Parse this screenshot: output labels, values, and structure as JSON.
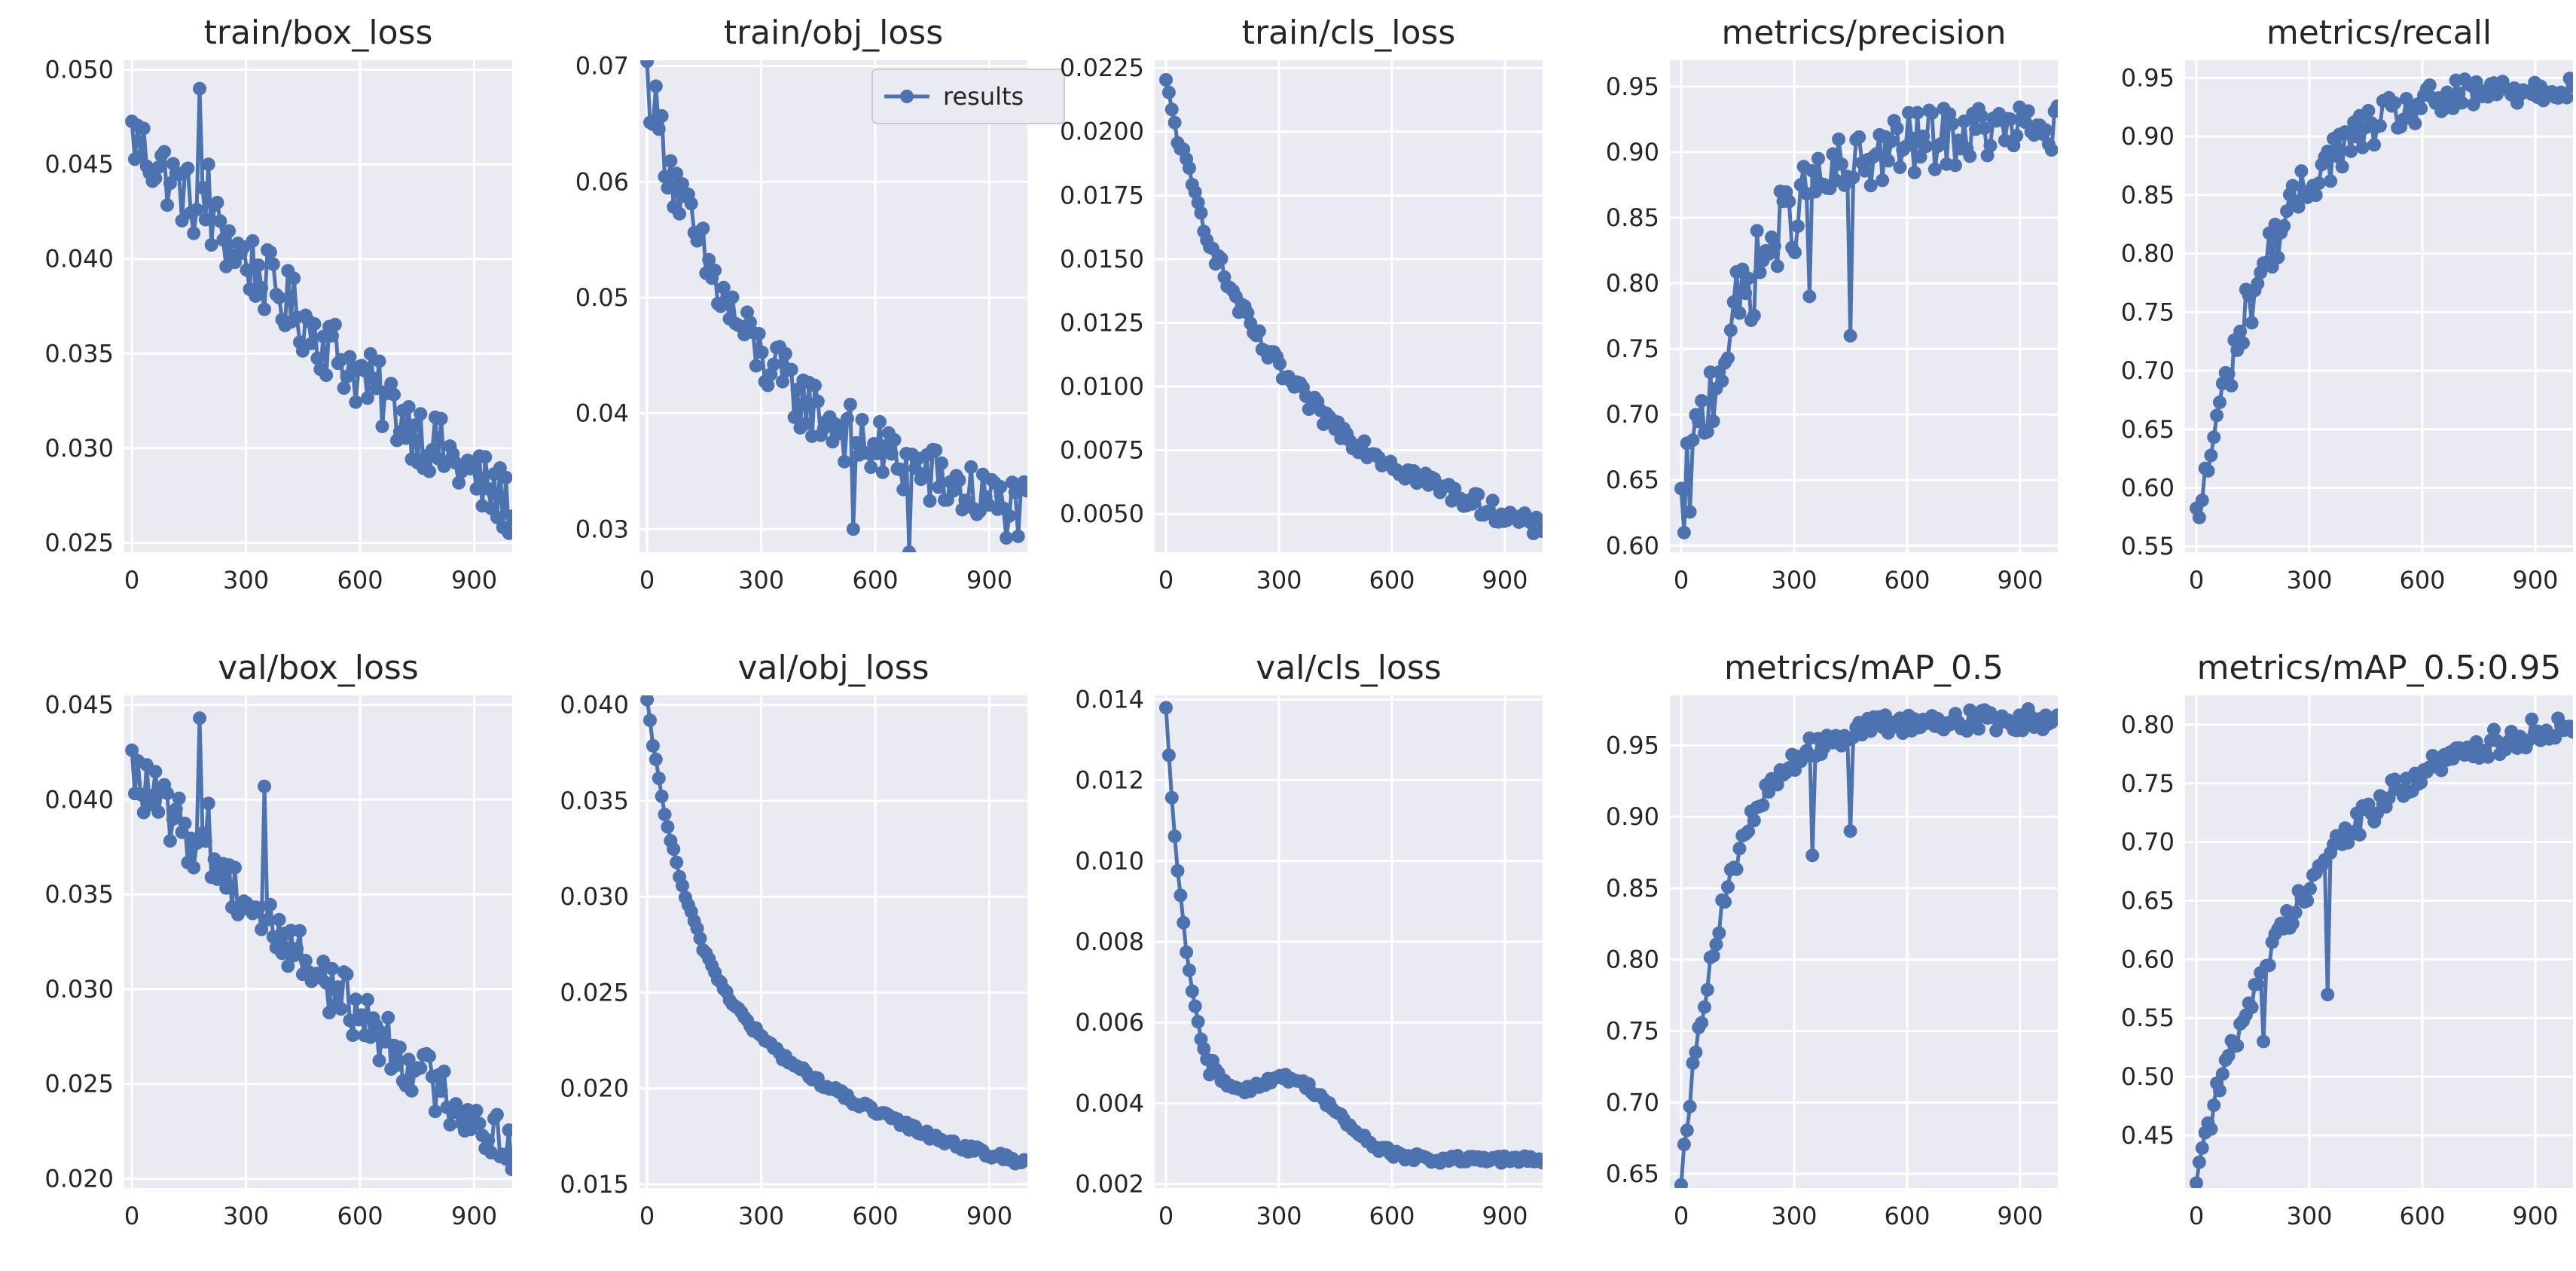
{
  "colors": {
    "series": "#4c72b0",
    "plot_bg": "#eaeaf2",
    "grid": "#ffffff",
    "text": "#262626"
  },
  "chart_data": [
    {
      "type": "line",
      "title": "train/box_loss",
      "xlabel": "",
      "ylabel": "",
      "xlim": [
        -20,
        1000
      ],
      "ylim": [
        0.0245,
        0.0505
      ],
      "xticks": [
        0,
        300,
        600,
        900
      ],
      "xtick_labels": [
        "0",
        "300",
        "600",
        "900"
      ],
      "yticks": [
        0.025,
        0.03,
        0.035,
        0.04,
        0.045,
        0.05
      ],
      "ytick_labels": [
        "0.025",
        "0.030",
        "0.035",
        "0.040",
        "0.045",
        "0.050"
      ],
      "series": [
        {
          "name": "results",
          "shape": "decay",
          "start": 0.0465,
          "end": 0.027,
          "noise": 0.0018,
          "spikes": [
            [
              180,
              0.049
            ],
            [
              200,
              0.045
            ],
            [
              230,
              0.042
            ]
          ]
        }
      ]
    },
    {
      "type": "line",
      "title": "train/obj_loss",
      "xlabel": "",
      "ylabel": "",
      "xlim": [
        -20,
        1000
      ],
      "ylim": [
        0.028,
        0.0705
      ],
      "xticks": [
        0,
        300,
        600,
        900
      ],
      "xtick_labels": [
        "0",
        "300",
        "600",
        "900"
      ],
      "yticks": [
        0.03,
        0.04,
        0.05,
        0.06,
        0.07
      ],
      "ytick_labels": [
        "0.03",
        "0.04",
        "0.05",
        "0.06",
        "0.07"
      ],
      "legend": {
        "entries": [
          "results"
        ],
        "loc": "upper-right"
      },
      "series": [
        {
          "name": "results",
          "shape": "fastdecay",
          "start": 0.069,
          "end": 0.031,
          "noise": 0.0028,
          "spikes": [
            [
              540,
              0.03
            ],
            [
              690,
              0.028
            ]
          ]
        }
      ]
    },
    {
      "type": "line",
      "title": "train/cls_loss",
      "xlabel": "",
      "ylabel": "",
      "xlim": [
        -30,
        1000
      ],
      "ylim": [
        0.0035,
        0.0228
      ],
      "xticks": [
        0,
        300,
        600,
        900
      ],
      "xtick_labels": [
        "0",
        "300",
        "600",
        "900"
      ],
      "yticks": [
        0.005,
        0.0075,
        0.01,
        0.0125,
        0.015,
        0.0175,
        0.02,
        0.0225
      ],
      "ytick_labels": [
        "0.0050",
        "0.0075",
        "0.0100",
        "0.0125",
        "0.0150",
        "0.0175",
        "0.0200",
        "0.0225"
      ],
      "series": [
        {
          "name": "results",
          "shape": "fastdecay",
          "start": 0.0218,
          "end": 0.0043,
          "noise": 0.0004,
          "spikes": []
        }
      ]
    },
    {
      "type": "line",
      "title": "metrics/precision",
      "xlabel": "",
      "ylabel": "",
      "xlim": [
        -30,
        1000
      ],
      "ylim": [
        0.595,
        0.97
      ],
      "xticks": [
        0,
        300,
        600,
        900
      ],
      "xtick_labels": [
        "0",
        "300",
        "600",
        "900"
      ],
      "yticks": [
        0.6,
        0.65,
        0.7,
        0.75,
        0.8,
        0.85,
        0.9,
        0.95
      ],
      "ytick_labels": [
        "0.60",
        "0.65",
        "0.70",
        "0.75",
        "0.80",
        "0.85",
        "0.90",
        "0.95"
      ],
      "series": [
        {
          "name": "results",
          "shape": "rise",
          "start": 0.62,
          "end": 0.92,
          "noise": 0.03,
          "spikes": [
            [
              10,
              0.61
            ],
            [
              340,
              0.79
            ],
            [
              450,
              0.76
            ]
          ]
        }
      ]
    },
    {
      "type": "line",
      "title": "metrics/recall",
      "xlabel": "",
      "ylabel": "",
      "xlim": [
        -30,
        1000
      ],
      "ylim": [
        0.545,
        0.965
      ],
      "xticks": [
        0,
        300,
        600,
        900
      ],
      "xtick_labels": [
        "0",
        "300",
        "600",
        "900"
      ],
      "yticks": [
        0.55,
        0.6,
        0.65,
        0.7,
        0.75,
        0.8,
        0.85,
        0.9,
        0.95
      ],
      "ytick_labels": [
        "0.55",
        "0.60",
        "0.65",
        "0.70",
        "0.75",
        "0.80",
        "0.85",
        "0.90",
        "0.95"
      ],
      "series": [
        {
          "name": "results",
          "shape": "rise",
          "start": 0.565,
          "end": 0.945,
          "noise": 0.02,
          "spikes": []
        }
      ]
    },
    {
      "type": "line",
      "title": "val/box_loss",
      "xlabel": "",
      "ylabel": "",
      "xlim": [
        -20,
        1000
      ],
      "ylim": [
        0.0195,
        0.0455
      ],
      "xticks": [
        0,
        300,
        600,
        900
      ],
      "xtick_labels": [
        "0",
        "300",
        "600",
        "900"
      ],
      "yticks": [
        0.02,
        0.025,
        0.03,
        0.035,
        0.04,
        0.045
      ],
      "ytick_labels": [
        "0.020",
        "0.025",
        "0.030",
        "0.035",
        "0.040",
        "0.045"
      ],
      "series": [
        {
          "name": "results",
          "shape": "decay",
          "start": 0.0414,
          "end": 0.0218,
          "noise": 0.0015,
          "spikes": [
            [
              180,
              0.0443
            ],
            [
              200,
              0.0398
            ],
            [
              350,
              0.0407
            ]
          ]
        }
      ]
    },
    {
      "type": "line",
      "title": "val/obj_loss",
      "xlabel": "",
      "ylabel": "",
      "xlim": [
        -20,
        1000
      ],
      "ylim": [
        0.0148,
        0.0405
      ],
      "xticks": [
        0,
        300,
        600,
        900
      ],
      "xtick_labels": [
        "0",
        "300",
        "600",
        "900"
      ],
      "yticks": [
        0.015,
        0.02,
        0.025,
        0.03,
        0.035,
        0.04
      ],
      "ytick_labels": [
        "0.015",
        "0.020",
        "0.025",
        "0.030",
        "0.035",
        "0.040"
      ],
      "series": [
        {
          "name": "results",
          "shape": "smoothobj",
          "start": 0.0401,
          "end": 0.0162,
          "noise": 0.0002,
          "spikes": []
        }
      ]
    },
    {
      "type": "line",
      "title": "val/cls_loss",
      "xlabel": "",
      "ylabel": "",
      "xlim": [
        -30,
        1000
      ],
      "ylim": [
        0.0019,
        0.0141
      ],
      "xticks": [
        0,
        300,
        600,
        900
      ],
      "xtick_labels": [
        "0",
        "300",
        "600",
        "900"
      ],
      "yticks": [
        0.002,
        0.004,
        0.006,
        0.008,
        0.01,
        0.012,
        0.014
      ],
      "ytick_labels": [
        "0.002",
        "0.004",
        "0.006",
        "0.008",
        "0.010",
        "0.012",
        "0.014"
      ],
      "series": [
        {
          "name": "results",
          "shape": "smoothcls",
          "start": 0.0137,
          "end": 0.0026,
          "noise": 0.0001,
          "spikes": []
        }
      ]
    },
    {
      "type": "line",
      "title": "metrics/mAP_0.5",
      "xlabel": "",
      "ylabel": "",
      "xlim": [
        -30,
        1000
      ],
      "ylim": [
        0.64,
        0.985
      ],
      "xticks": [
        0,
        300,
        600,
        900
      ],
      "xtick_labels": [
        "0",
        "300",
        "600",
        "900"
      ],
      "yticks": [
        0.65,
        0.7,
        0.75,
        0.8,
        0.85,
        0.9,
        0.95
      ],
      "ytick_labels": [
        "0.65",
        "0.70",
        "0.75",
        "0.80",
        "0.85",
        "0.90",
        "0.95"
      ],
      "series": [
        {
          "name": "results",
          "shape": "saturate",
          "start": 0.65,
          "end": 0.968,
          "noise": 0.008,
          "spikes": [
            [
              350,
              0.873
            ],
            [
              450,
              0.89
            ]
          ]
        }
      ]
    },
    {
      "type": "line",
      "title": "metrics/mAP_0.5:0.95",
      "xlabel": "",
      "ylabel": "",
      "xlim": [
        -30,
        1000
      ],
      "ylim": [
        0.405,
        0.825
      ],
      "xticks": [
        0,
        300,
        600,
        900
      ],
      "xtick_labels": [
        "0",
        "300",
        "600",
        "900"
      ],
      "yticks": [
        0.45,
        0.5,
        0.55,
        0.6,
        0.65,
        0.7,
        0.75,
        0.8
      ],
      "ytick_labels": [
        "0.45",
        "0.50",
        "0.55",
        "0.60",
        "0.65",
        "0.70",
        "0.75",
        "0.80"
      ],
      "series": [
        {
          "name": "results",
          "shape": "risemap",
          "start": 0.42,
          "end": 0.8,
          "noise": 0.012,
          "spikes": [
            [
              180,
              0.53
            ],
            [
              350,
              0.57
            ]
          ]
        }
      ]
    }
  ]
}
